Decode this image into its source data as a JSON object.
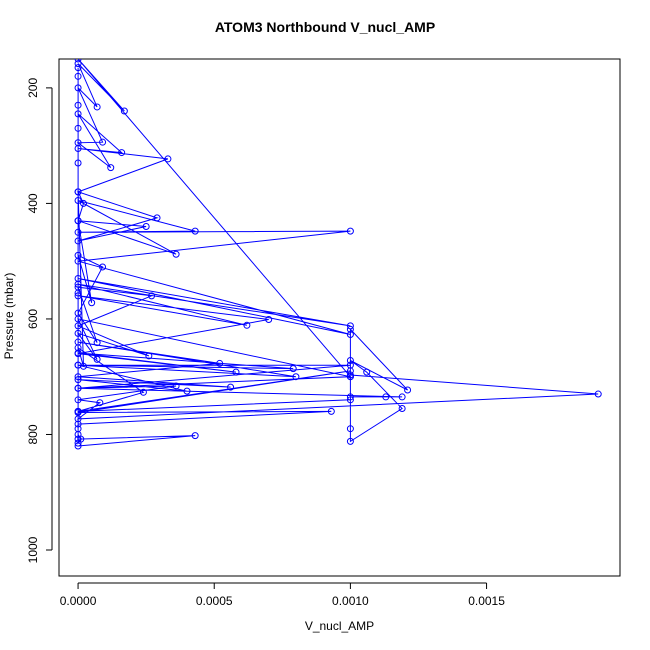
{
  "chart_data": {
    "type": "line",
    "title": "ATOM3 Northbound V_nucl_AMP",
    "xlabel": "V_nucl_AMP",
    "ylabel": "Pressure (mbar)",
    "xlim": [
      -7e-05,
      0.00199
    ],
    "ylim": [
      1045,
      150
    ],
    "y_reversed": true,
    "x_ticks": [
      0.0,
      0.0005,
      0.001,
      0.0015
    ],
    "x_tick_labels": [
      "0.0000",
      "0.0005",
      "0.0010",
      "0.0015"
    ],
    "y_ticks": [
      200,
      400,
      600,
      800,
      1000
    ],
    "y_tick_labels": [
      "200",
      "400",
      "600",
      "800",
      "1000"
    ],
    "grid": false,
    "legend": "none",
    "markers": "open-circle",
    "series": [
      {
        "color": "#0000ff",
        "points": [
          [
            0.0,
            820
          ],
          [
            0.00043,
            802
          ],
          [
            0.0,
            808
          ],
          [
            0.0,
            782
          ],
          [
            0.00093,
            760
          ],
          [
            0.0,
            762
          ],
          [
            0.001,
            690
          ],
          [
            0.0,
            760
          ],
          [
            0.001,
            740
          ],
          [
            0.001,
            700
          ],
          [
            0.0,
            720
          ],
          [
            0.00119,
            735
          ],
          [
            0.00113,
            735
          ],
          [
            0.001,
            735
          ],
          [
            0.001,
            790
          ],
          [
            0.001,
            812
          ],
          [
            0.00119,
            755
          ],
          [
            0.00106,
            692
          ],
          [
            0.001,
            672
          ],
          [
            0.00121,
            723
          ],
          [
            0.001,
            618
          ],
          [
            0.001,
            697
          ],
          [
            0.00191,
            730
          ],
          [
            0.0,
            773
          ],
          [
            8e-05,
            745
          ],
          [
            0.0,
            740
          ],
          [
            0.00036,
            716
          ],
          [
            0.0,
            720
          ],
          [
            0.001,
            680
          ],
          [
            0.0,
            680
          ],
          [
            0.0004,
            725
          ],
          [
            0.0,
            705
          ],
          [
            0.00056,
            718
          ],
          [
            0.0,
            700
          ],
          [
            0.00052,
            677
          ],
          [
            0.0,
            640
          ],
          [
            0.0008,
            700
          ],
          [
            0.0,
            680
          ],
          [
            0.00079,
            686
          ],
          [
            0.0,
            659
          ],
          [
            0.00058,
            692
          ],
          [
            0.0,
            660
          ],
          [
            0.0007,
            601
          ],
          [
            0.0,
            560
          ],
          [
            0.00062,
            611
          ],
          [
            0.0,
            540
          ],
          [
            0.001,
            612
          ],
          [
            0.0,
            530
          ],
          [
            0.001,
            627
          ],
          [
            0.0,
            500
          ],
          [
            0.001,
            448
          ],
          [
            0.0,
            450
          ],
          [
            0.00043,
            448
          ],
          [
            0.0,
            395
          ],
          [
            0.00036,
            488
          ],
          [
            0.0,
            430
          ],
          [
            0.00025,
            440
          ],
          [
            0.0,
            465
          ],
          [
            0.00029,
            425
          ],
          [
            0.0,
            380
          ],
          [
            0.00033,
            323
          ],
          [
            0.0,
            305
          ],
          [
            0.00016,
            312
          ],
          [
            0.0,
            245
          ],
          [
            0.00012,
            338
          ],
          [
            0.0,
            295
          ],
          [
            9e-05,
            294
          ],
          [
            0.0,
            200
          ],
          [
            7e-05,
            233
          ],
          [
            0.0,
            158
          ],
          [
            0.00017,
            240
          ],
          [
            0.0,
            150
          ],
          [
            0.001,
            700
          ],
          [
            0.0,
            600
          ],
          [
            7e-05,
            670
          ],
          [
            0.0,
            625
          ],
          [
            0.00026,
            664
          ],
          [
            0.0,
            612
          ],
          [
            0.00027,
            560
          ],
          [
            0.0,
            545
          ],
          [
            7e-05,
            641
          ],
          [
            0.0,
            590
          ],
          [
            9e-05,
            510
          ],
          [
            0.0,
            490
          ],
          [
            5e-05,
            572
          ],
          [
            0.0,
            430
          ],
          [
            2e-05,
            400
          ],
          [
            0.0,
            380
          ],
          [
            2e-05,
            682
          ],
          [
            0.0,
            650
          ],
          [
            0.00024,
            727
          ],
          [
            0.0,
            760
          ],
          [
            0.0,
            790
          ],
          [
            0.0,
            800
          ],
          [
            1e-05,
            808
          ],
          [
            0.0,
            815
          ],
          [
            0.0,
            555
          ],
          [
            0.0,
            330
          ],
          [
            0.0,
            270
          ],
          [
            0.0,
            230
          ],
          [
            0.0,
            180
          ],
          [
            0.0,
            165
          ]
        ]
      }
    ]
  }
}
